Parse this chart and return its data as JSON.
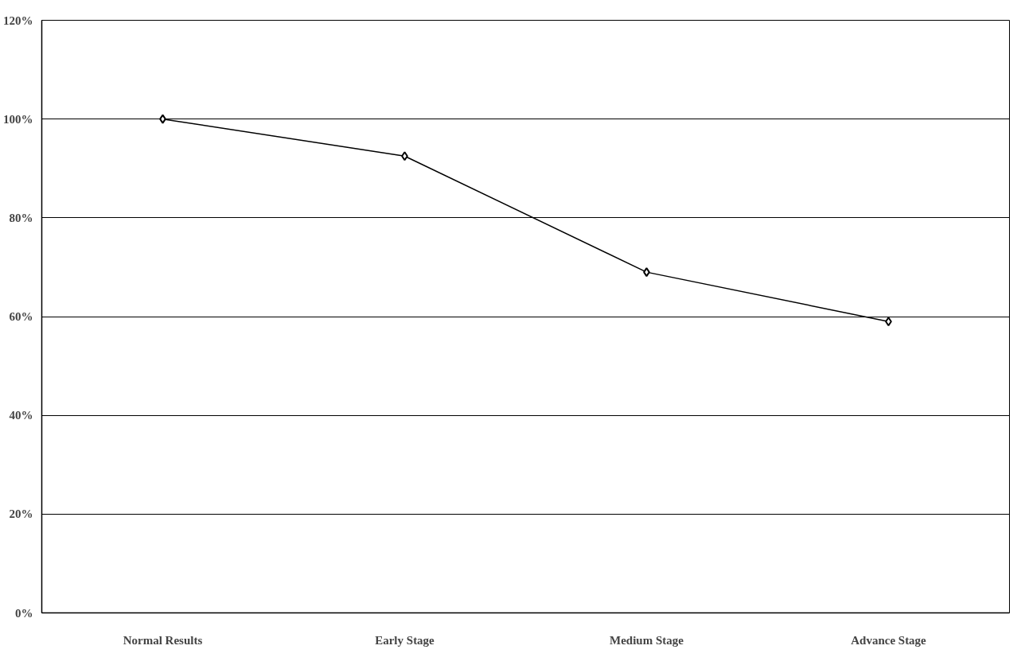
{
  "chart_data": {
    "type": "line",
    "categories": [
      "Normal Results",
      "Early Stage",
      "Medium Stage",
      "Advance Stage"
    ],
    "series": [
      {
        "color": "#000000",
        "values": [
          100,
          92.5,
          69,
          59
        ]
      }
    ],
    "ylim": [
      0,
      120
    ],
    "yticks": [
      {
        "value": 0,
        "label": "0%"
      },
      {
        "value": 20,
        "label": "20%"
      },
      {
        "value": 40,
        "label": "40%"
      },
      {
        "value": 60,
        "label": "60%"
      },
      {
        "value": 80,
        "label": "80%"
      },
      {
        "value": 100,
        "label": "100%"
      },
      {
        "value": 120,
        "label": "120%"
      }
    ],
    "grid": "y",
    "marker": "diamond",
    "line_style": "solid"
  }
}
